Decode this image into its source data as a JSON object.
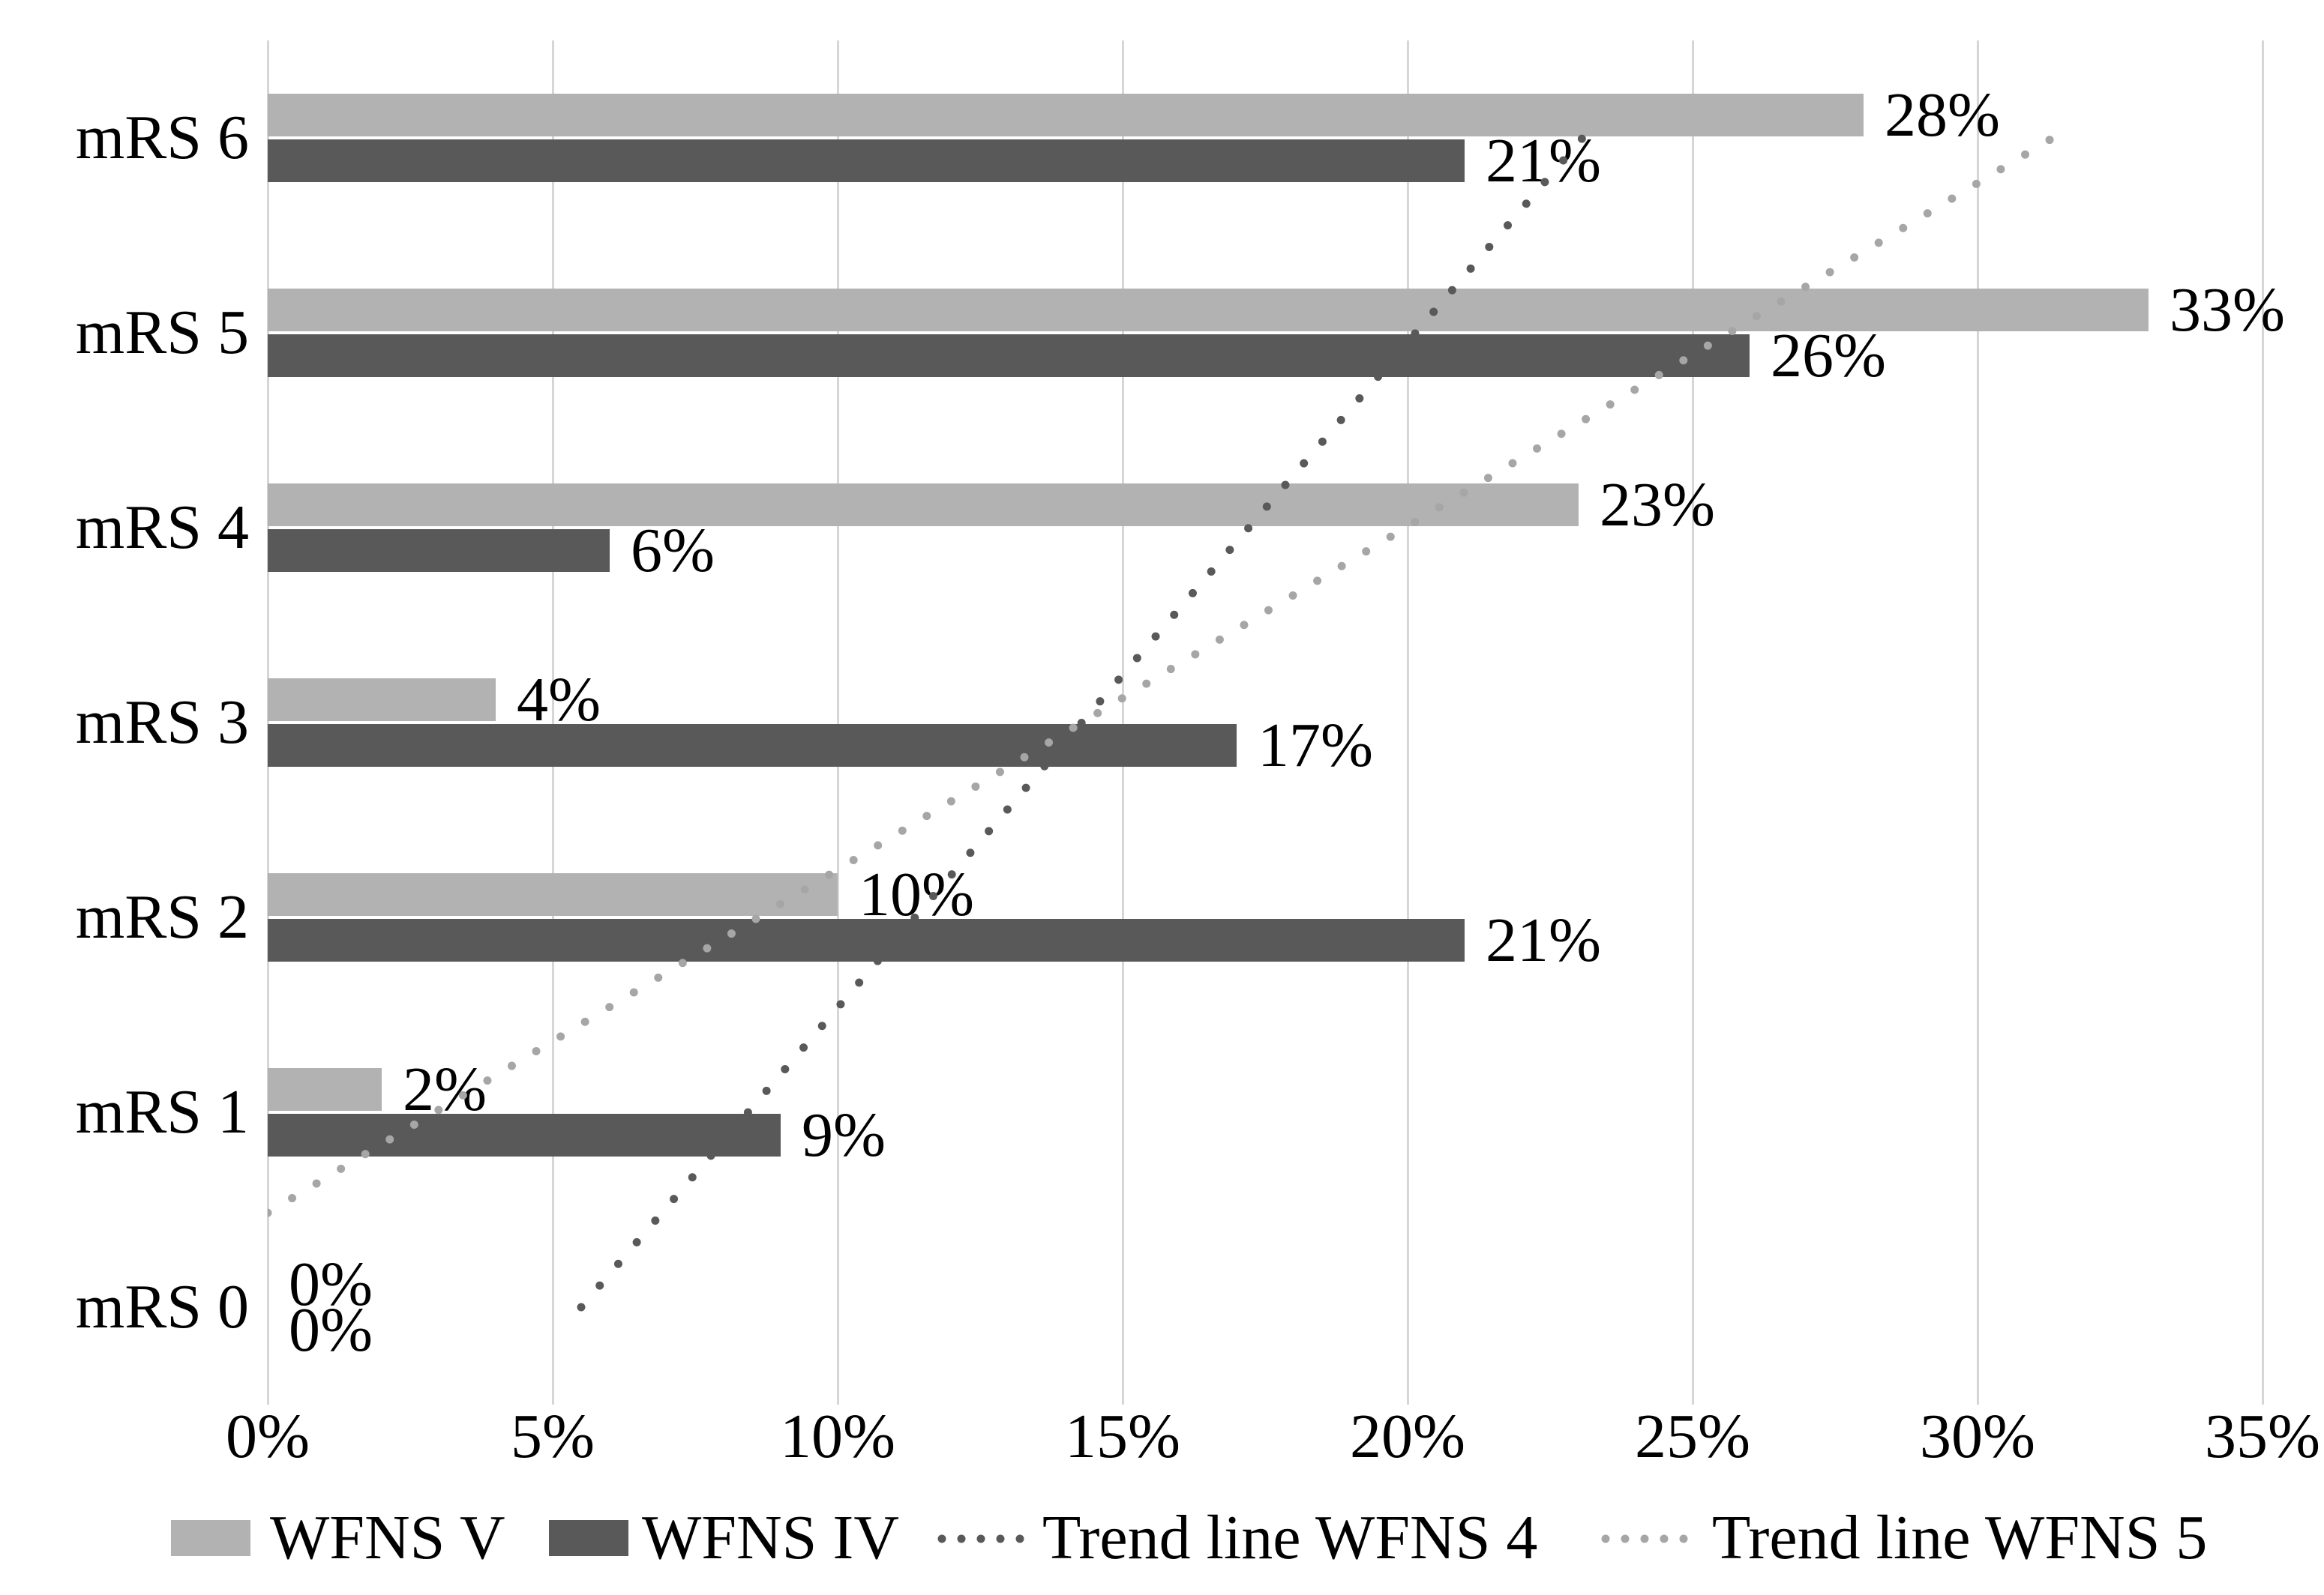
{
  "chart_data": {
    "type": "bar",
    "orientation": "horizontal",
    "title": "",
    "xlabel": "",
    "ylabel": "",
    "grid": true,
    "categories": [
      "mRS 6",
      "mRS 5",
      "mRS 4",
      "mRS 3",
      "mRS 2",
      "mRS 1",
      "mRS 0"
    ],
    "series": [
      {
        "name": "WFNS V",
        "color": "#b2b2b2",
        "values": [
          28,
          33,
          23,
          4,
          10,
          2,
          0
        ],
        "labels": [
          "28%",
          "33%",
          "23%",
          "4%",
          "10%",
          "2%",
          "0%"
        ]
      },
      {
        "name": "WFNS IV",
        "color": "#595959",
        "values": [
          21,
          26,
          6,
          17,
          21,
          9,
          0
        ],
        "labels": [
          "21%",
          "26%",
          "6%",
          "17%",
          "21%",
          "9%",
          "0%"
        ]
      }
    ],
    "trendlines": [
      {
        "name": "Trend line WFNS 4",
        "color": "#595959",
        "points": [
          {
            "pct": 5.5,
            "cat": 1
          },
          {
            "pct": 23.07,
            "cat": 7
          }
        ]
      },
      {
        "name": "Trend line WFNS 5",
        "color": "#a6a6a6",
        "points": [
          {
            "pct": 0,
            "cat": 1.484
          },
          {
            "pct": 31.32,
            "cat": 7
          }
        ]
      }
    ],
    "x_axis": {
      "min": 0,
      "max": 35,
      "step": 5,
      "ticks": [
        "0%",
        "5%",
        "10%",
        "15%",
        "20%",
        "25%",
        "30%",
        "35%"
      ]
    },
    "legend": {
      "position": "bottom",
      "items": [
        "WFNS V",
        "WFNS IV",
        "Trend line WFNS 4",
        "Trend line WFNS 5"
      ]
    }
  },
  "colors": {
    "grid": "#d6d6d6",
    "background": "#ffffff",
    "text": "#000000"
  }
}
